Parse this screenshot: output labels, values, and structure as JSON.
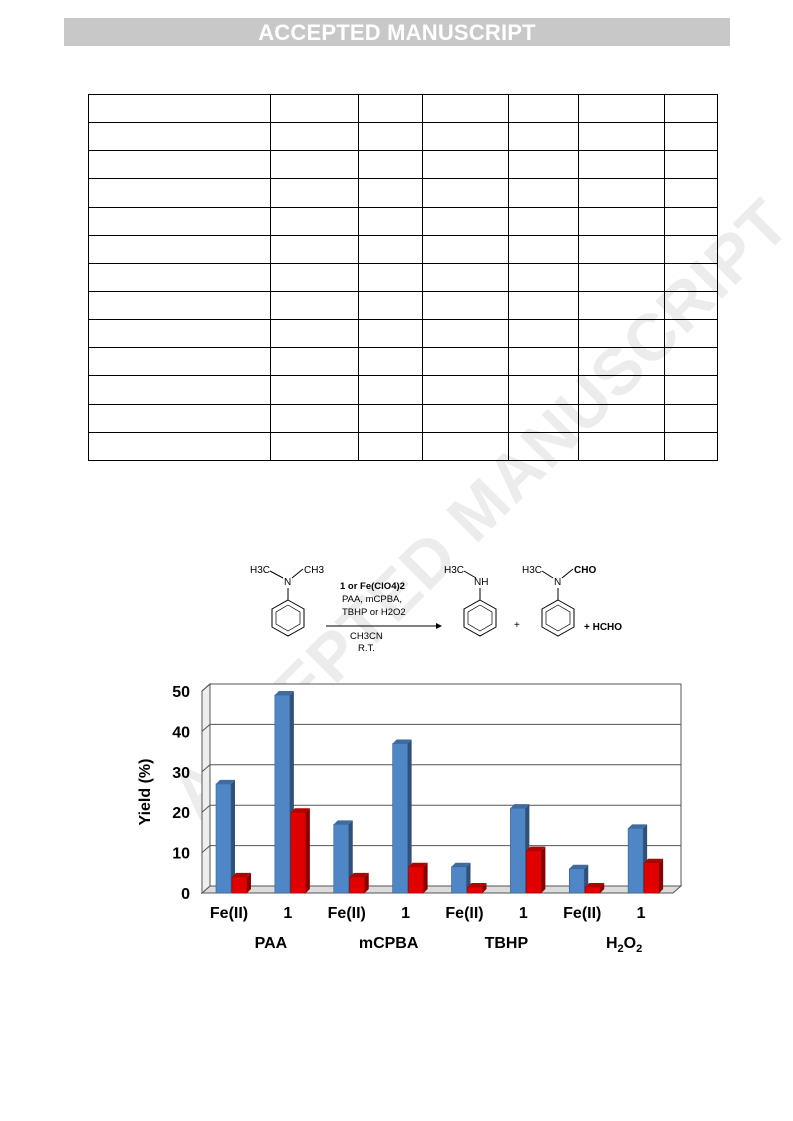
{
  "header": {
    "banner": "ACCEPTED MANUSCRIPT"
  },
  "watermark": "ACCEPTED MANUSCRIPT",
  "table": {
    "rows": 13,
    "columns": 7
  },
  "scheme": {
    "reactant_me1": "H3C",
    "reactant_me2": "CH3",
    "n": "N",
    "reagent_line1": "1 or Fe(ClO4)2",
    "reagent_line2": "PAA, mCPBA,",
    "reagent_line3": "TBHP or H2O2",
    "condition_line1": "CH3CN",
    "condition_line2": "R.T.",
    "product1_me": "H3C",
    "product1_nh": "NH",
    "product2_me": "H3C",
    "product2_cho": "CHO",
    "plus": "+",
    "byproduct": "+ HCHO"
  },
  "chart_data": {
    "type": "bar",
    "ylabel": "Yield (%)",
    "ylim": [
      0,
      50
    ],
    "yticks": [
      0,
      10,
      20,
      30,
      40,
      50
    ],
    "categories": [
      "Fe(II)",
      "1",
      "Fe(II)",
      "1",
      "Fe(II)",
      "1",
      "Fe(II)",
      "1"
    ],
    "groups": [
      "PAA",
      "mCPBA",
      "TBHP",
      "H2O2"
    ],
    "series": [
      {
        "color": "#4f86c6",
        "values": [
          27,
          49,
          17,
          37,
          6.5,
          21,
          6,
          16
        ]
      },
      {
        "color": "#e00000",
        "values": [
          4,
          20,
          4,
          6.5,
          1.5,
          10.5,
          1.5,
          7.5
        ]
      }
    ],
    "grid": true
  }
}
